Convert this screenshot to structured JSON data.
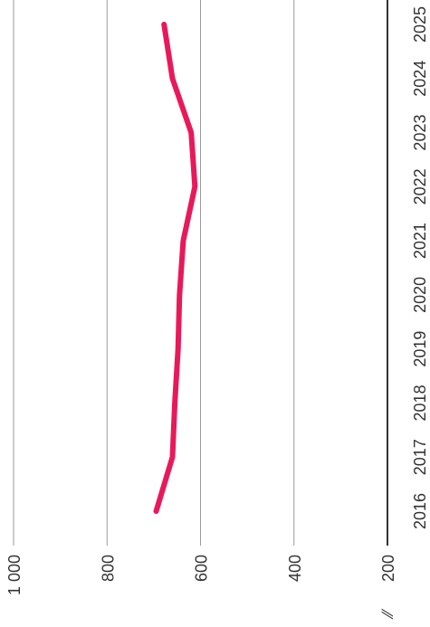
{
  "chart_data": {
    "type": "line",
    "orientation": "rotated-90-clockwise",
    "title": "",
    "xlabel": "",
    "ylabel": "",
    "x": [
      "2016",
      "2017",
      "2018",
      "2019",
      "2020",
      "2021",
      "2022",
      "2023",
      "2024",
      "2025"
    ],
    "series": [
      {
        "values": [
          695,
          660,
          655,
          648,
          645,
          637,
          612,
          620,
          660,
          678
        ],
        "color": "#e8195a"
      }
    ],
    "ylim": [
      200,
      1000
    ],
    "y_ticks": [
      200,
      400,
      600,
      800,
      1000
    ],
    "y_tick_labels": [
      "200",
      "400",
      "600",
      "800",
      "1 000"
    ],
    "axis_break_symbol": "∕∕",
    "grid": true
  }
}
